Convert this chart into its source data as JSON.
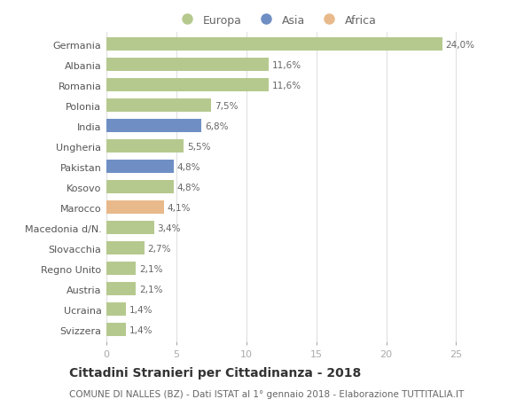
{
  "countries": [
    "Germania",
    "Albania",
    "Romania",
    "Polonia",
    "India",
    "Ungheria",
    "Pakistan",
    "Kosovo",
    "Marocco",
    "Macedonia d/N.",
    "Slovacchia",
    "Regno Unito",
    "Austria",
    "Ucraina",
    "Svizzera"
  ],
  "values": [
    24.0,
    11.6,
    11.6,
    7.5,
    6.8,
    5.5,
    4.8,
    4.8,
    4.1,
    3.4,
    2.7,
    2.1,
    2.1,
    1.4,
    1.4
  ],
  "labels": [
    "24,0%",
    "11,6%",
    "11,6%",
    "7,5%",
    "6,8%",
    "5,5%",
    "4,8%",
    "4,8%",
    "4,1%",
    "3,4%",
    "2,7%",
    "2,1%",
    "2,1%",
    "1,4%",
    "1,4%"
  ],
  "continents": [
    "Europa",
    "Europa",
    "Europa",
    "Europa",
    "Asia",
    "Europa",
    "Asia",
    "Europa",
    "Africa",
    "Europa",
    "Europa",
    "Europa",
    "Europa",
    "Europa",
    "Europa"
  ],
  "colors": {
    "Europa": "#b5c98e",
    "Asia": "#6f8fc4",
    "Africa": "#e8b98a"
  },
  "xlim": [
    0,
    27
  ],
  "xticks": [
    0,
    5,
    10,
    15,
    20,
    25
  ],
  "title": "Cittadini Stranieri per Cittadinanza - 2018",
  "subtitle": "COMUNE DI NALLES (BZ) - Dati ISTAT al 1° gennaio 2018 - Elaborazione TUTTITALIA.IT",
  "background_color": "#ffffff",
  "grid_color": "#e0e0e0",
  "bar_height": 0.65,
  "title_fontsize": 10,
  "subtitle_fontsize": 7.5,
  "label_fontsize": 7.5,
  "tick_fontsize": 8,
  "legend_fontsize": 9
}
